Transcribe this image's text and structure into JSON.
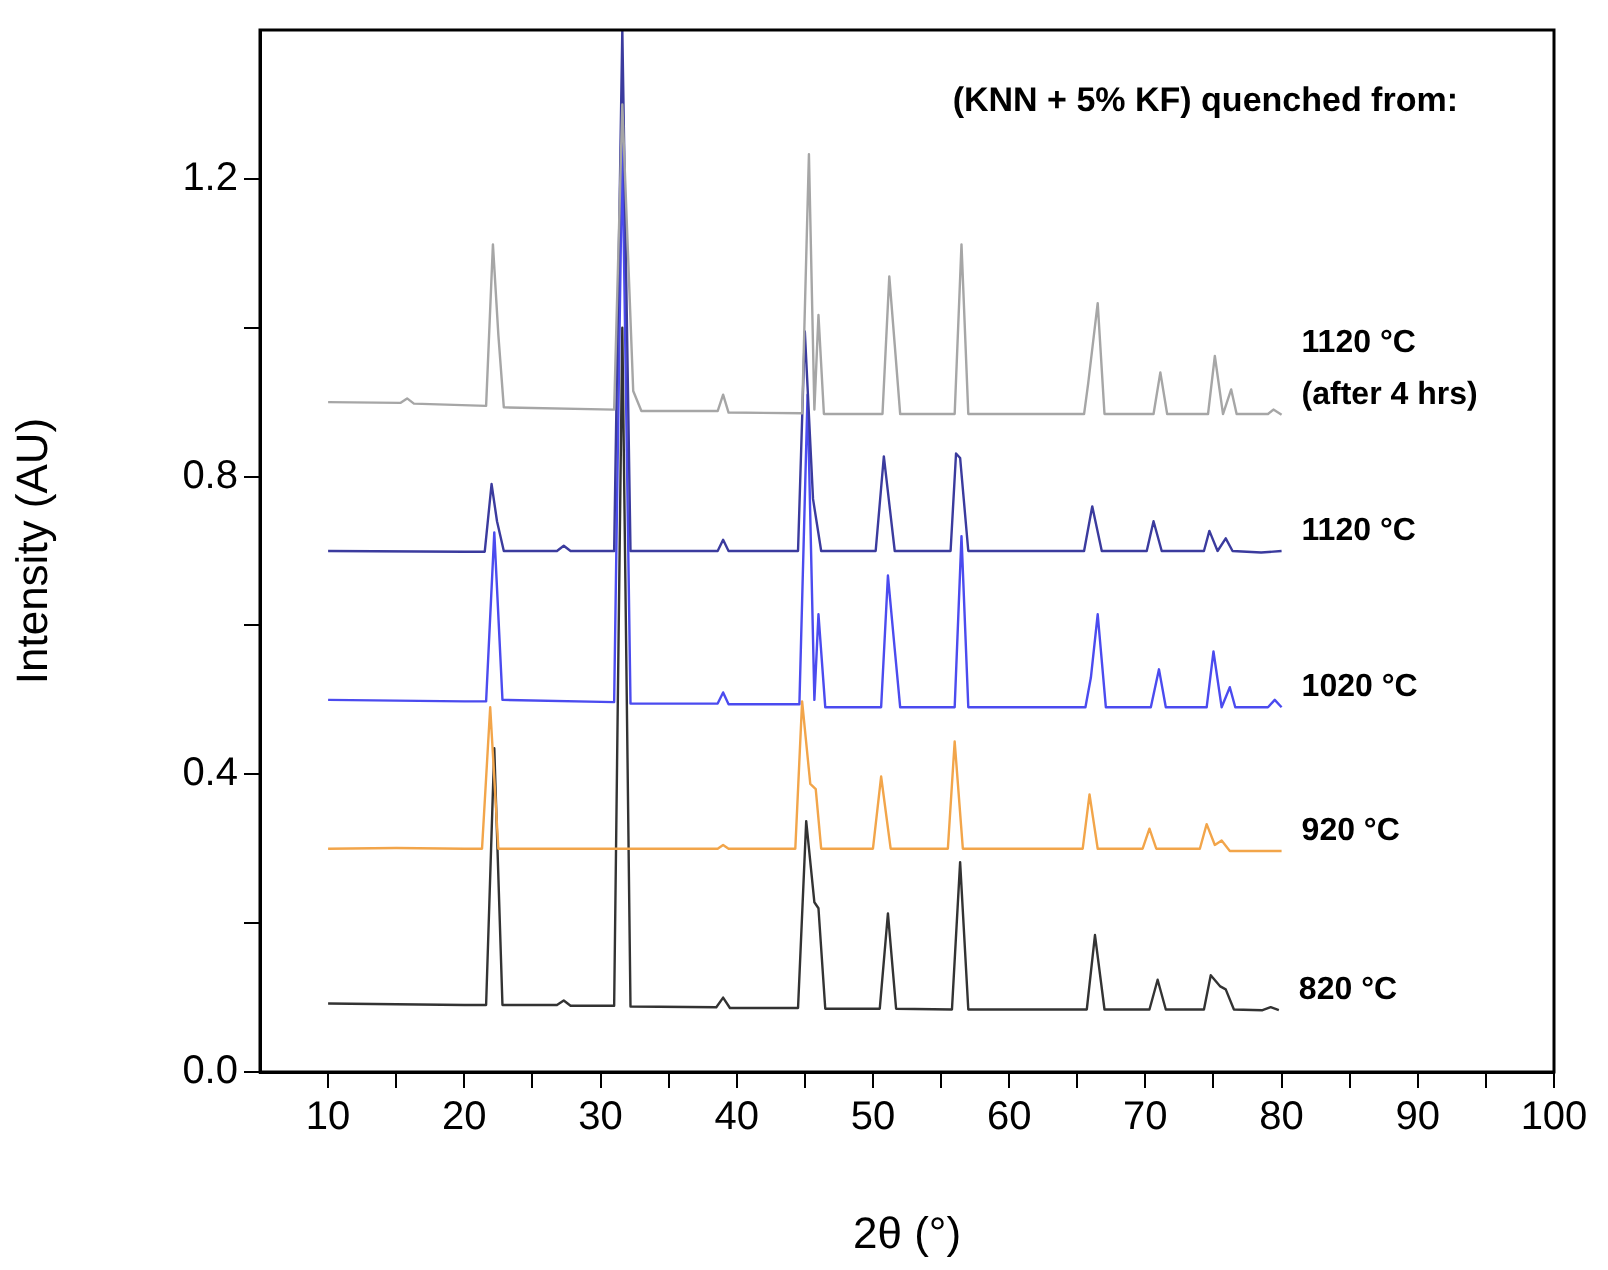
{
  "chart_data": {
    "type": "line",
    "xlabel": "2θ (°)",
    "ylabel": "Intensity (AU)",
    "annotations": [
      "(KNN + 5% KF) quenched from:"
    ],
    "marker": "none",
    "xlim": [
      5,
      100
    ],
    "ylim": [
      0,
      1.4
    ],
    "xticks": [
      10,
      {
        "value": 15,
        "label": null
      },
      20,
      {
        "value": 25,
        "label": null
      },
      30,
      {
        "value": 35,
        "label": null
      },
      40,
      {
        "value": 45,
        "label": null
      },
      50,
      {
        "value": 55,
        "label": null
      },
      60,
      {
        "value": 65,
        "label": null
      },
      70,
      {
        "value": 75,
        "label": null
      },
      80,
      {
        "value": 85,
        "label": null
      },
      90,
      {
        "value": 95,
        "label": null
      },
      100
    ],
    "yticks": [
      {
        "value": 0,
        "label": "0.0"
      },
      {
        "value": 0.2,
        "label": null
      },
      {
        "value": 0.4,
        "label": "0.4"
      },
      {
        "value": 0.6,
        "label": null
      },
      {
        "value": 0.8,
        "label": "0.8"
      },
      {
        "value": 1.0,
        "label": null
      },
      {
        "value": 1.2,
        "label": "1.2"
      }
    ],
    "series": [
      {
        "name": "1120 °C (after 4 hrs)",
        "color": "#a6a6a6",
        "x": [
          10,
          15.3,
          15.8,
          16.3,
          21.6,
          22.1,
          22.5,
          22.9,
          31.0,
          31.6,
          32.4,
          33.0,
          38.6,
          39.0,
          39.4,
          44.8,
          45.3,
          45.7,
          46.0,
          46.4,
          50.7,
          51.2,
          51.6,
          52.0,
          56.0,
          56.5,
          57.0,
          65.5,
          65.8,
          66.5,
          67.0,
          70.6,
          71.1,
          71.6,
          74.6,
          75.1,
          75.7,
          76.3,
          76.7,
          79.0,
          79.4,
          80
        ],
        "values": [
          0.9,
          0.899,
          0.905,
          0.898,
          0.895,
          1.112,
          0.99,
          0.893,
          0.89,
          1.3,
          0.915,
          0.888,
          0.888,
          0.91,
          0.886,
          0.885,
          1.233,
          0.89,
          1.017,
          0.884,
          0.884,
          1.069,
          0.977,
          0.884,
          0.884,
          1.112,
          0.884,
          0.884,
          0.925,
          1.033,
          0.884,
          0.884,
          0.94,
          0.884,
          0.884,
          0.962,
          0.884,
          0.917,
          0.884,
          0.884,
          0.89,
          0.883
        ]
      },
      {
        "name": "1120 °C",
        "color": "#3b3b9e",
        "x": [
          10,
          20,
          21.5,
          22.0,
          22.4,
          22.9,
          26.8,
          27.3,
          27.8,
          31.0,
          31.6,
          32.2,
          38.6,
          39.0,
          39.4,
          44.5,
          45.0,
          45.6,
          46.2,
          50.2,
          50.8,
          51.6,
          55.7,
          56.1,
          56.4,
          57.0,
          65.5,
          66.1,
          66.8,
          70.1,
          70.6,
          71.2,
          74.3,
          74.7,
          75.3,
          75.9,
          76.4,
          78.5,
          80
        ],
        "values": [
          0.7,
          0.699,
          0.699,
          0.79,
          0.74,
          0.7,
          0.7,
          0.707,
          0.7,
          0.7,
          1.4,
          0.7,
          0.7,
          0.715,
          0.7,
          0.7,
          0.995,
          0.77,
          0.7,
          0.7,
          0.827,
          0.7,
          0.7,
          0.831,
          0.825,
          0.7,
          0.7,
          0.76,
          0.7,
          0.7,
          0.74,
          0.7,
          0.7,
          0.727,
          0.7,
          0.717,
          0.7,
          0.698,
          0.7
        ]
      },
      {
        "name": "1020 °C",
        "color": "#4b4bef",
        "x": [
          10,
          20,
          21.6,
          22.2,
          22.8,
          31.0,
          31.6,
          32.2,
          38.6,
          39.0,
          39.4,
          44.6,
          45.2,
          45.7,
          46.0,
          46.5,
          50.6,
          51.1,
          51.6,
          52.0,
          56.0,
          56.5,
          57.0,
          65.6,
          66.0,
          66.5,
          67.1,
          70.4,
          71.0,
          71.5,
          74.5,
          75.0,
          75.6,
          76.2,
          76.6,
          79.0,
          79.5,
          80
        ],
        "values": [
          0.5,
          0.498,
          0.498,
          0.725,
          0.5,
          0.497,
          1.25,
          0.495,
          0.495,
          0.51,
          0.494,
          0.494,
          0.91,
          0.5,
          0.615,
          0.49,
          0.49,
          0.667,
          0.568,
          0.49,
          0.49,
          0.72,
          0.49,
          0.49,
          0.53,
          0.615,
          0.49,
          0.49,
          0.541,
          0.49,
          0.49,
          0.565,
          0.49,
          0.517,
          0.49,
          0.49,
          0.5,
          0.49
        ]
      },
      {
        "name": "920 °C",
        "color": "#f2a54a",
        "x": [
          10,
          15,
          20,
          21.3,
          21.9,
          22.5,
          31.0,
          31.5,
          32.0,
          38.6,
          39.0,
          39.4,
          44.3,
          44.8,
          45.4,
          45.8,
          46.2,
          50.0,
          50.6,
          51.3,
          55.5,
          56.0,
          56.6,
          65.4,
          65.9,
          66.5,
          69.8,
          70.3,
          70.8,
          74.0,
          74.5,
          75.1,
          75.6,
          76.2,
          80
        ],
        "values": [
          0.3,
          0.301,
          0.3,
          0.3,
          0.49,
          0.3,
          0.3,
          null,
          0.3,
          0.3,
          0.305,
          0.3,
          0.3,
          0.498,
          0.387,
          0.38,
          0.3,
          0.3,
          0.397,
          0.3,
          0.3,
          0.444,
          0.3,
          0.3,
          0.373,
          0.3,
          0.3,
          0.327,
          0.3,
          0.3,
          0.333,
          0.305,
          0.311,
          0.297,
          0.297
        ]
      },
      {
        "name": "820 °C",
        "color": "#333333",
        "x": [
          10,
          15,
          20,
          21.6,
          22.2,
          22.8,
          26.8,
          27.3,
          27.8,
          31.0,
          31.6,
          32.2,
          38.5,
          39.0,
          39.5,
          44.5,
          45.1,
          45.7,
          46.0,
          46.5,
          50.5,
          51.1,
          51.7,
          55.8,
          56.4,
          57.0,
          65.7,
          66.3,
          67.0,
          70.3,
          70.9,
          71.5,
          74.3,
          74.8,
          75.5,
          75.9,
          76.5,
          78.6,
          79.2,
          79.8
        ],
        "values": [
          0.092,
          0.091,
          0.09,
          0.09,
          0.435,
          0.09,
          0.09,
          0.096,
          0.089,
          0.089,
          1.0,
          0.088,
          0.087,
          0.1,
          0.086,
          0.086,
          0.337,
          0.228,
          0.22,
          0.085,
          0.085,
          0.213,
          0.085,
          0.084,
          0.282,
          0.084,
          0.084,
          0.184,
          0.084,
          0.084,
          0.124,
          0.084,
          0.084,
          0.13,
          0.115,
          0.111,
          0.084,
          0.083,
          0.087,
          0.083
        ]
      }
    ]
  }
}
